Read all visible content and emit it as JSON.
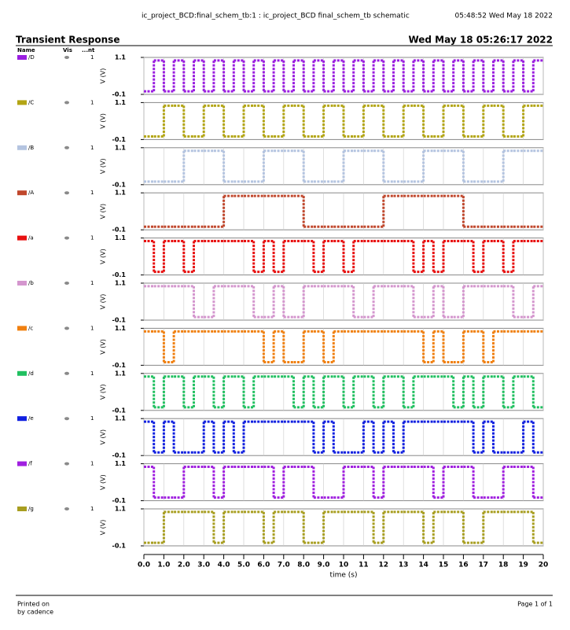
{
  "header": {
    "left": "ic_project_BCD:final_schem_tb:1 : ic_project_BCD final_schem_tb schematic",
    "right": "05:48:52  Wed May 18 2022"
  },
  "chart_data": {
    "type": "line",
    "step": true,
    "title": "Transient Response",
    "date": "Wed May 18 05:26:17 2022",
    "columns": [
      "Name",
      "Vis",
      "...nt"
    ],
    "xlabel": "time (s)",
    "ylabel": "V (V)",
    "xlim": [
      0,
      20
    ],
    "xticks": [
      {
        "value": 0,
        "label": "0.0"
      },
      {
        "value": 1,
        "label": "1.0"
      },
      {
        "value": 2,
        "label": "2.0"
      },
      {
        "value": 3,
        "label": "3.0"
      },
      {
        "value": 4,
        "label": "4.0"
      },
      {
        "value": 5,
        "label": "5.0"
      },
      {
        "value": 6,
        "label": "6.0"
      },
      {
        "value": 7,
        "label": "7.0"
      },
      {
        "value": 8,
        "label": "8.0"
      },
      {
        "value": 9,
        "label": "9.0"
      },
      10,
      11,
      12,
      13,
      14,
      15,
      16,
      17,
      18,
      19,
      20
    ],
    "ylim": [
      -0.1,
      1.1
    ],
    "yticks": [
      -0.1,
      1.1
    ],
    "grid": true,
    "x": [
      0,
      0.5,
      1,
      1.5,
      2,
      2.5,
      3,
      3.5,
      4,
      4.5,
      5,
      5.5,
      6,
      6.5,
      7,
      7.5,
      8,
      8.5,
      9,
      9.5,
      10,
      10.5,
      11,
      11.5,
      12,
      12.5,
      13,
      13.5,
      14,
      14.5,
      15,
      15.5,
      16,
      16.5,
      17,
      17.5,
      18,
      18.5,
      19,
      19.5
    ],
    "series": [
      {
        "name": "/D",
        "color": "#9a1ee0",
        "nt": 1,
        "values": [
          0,
          1,
          0,
          1,
          0,
          1,
          0,
          1,
          0,
          1,
          0,
          1,
          0,
          1,
          0,
          1,
          0,
          1,
          0,
          1,
          0,
          1,
          0,
          1,
          0,
          1,
          0,
          1,
          0,
          1,
          0,
          1,
          0,
          1,
          0,
          1,
          0,
          1,
          0,
          1
        ]
      },
      {
        "name": "/C",
        "color": "#b3a514",
        "nt": 1,
        "values": [
          0,
          0,
          1,
          1,
          0,
          0,
          1,
          1,
          0,
          0,
          1,
          1,
          0,
          0,
          1,
          1,
          0,
          0,
          1,
          1,
          0,
          0,
          1,
          1,
          0,
          0,
          1,
          1,
          0,
          0,
          1,
          1,
          0,
          0,
          1,
          1,
          0,
          0,
          1,
          1
        ]
      },
      {
        "name": "/B",
        "color": "#b4c4e0",
        "nt": 1,
        "values": [
          0,
          0,
          0,
          0,
          1,
          1,
          1,
          1,
          0,
          0,
          0,
          0,
          1,
          1,
          1,
          1,
          0,
          0,
          0,
          0,
          1,
          1,
          1,
          1,
          0,
          0,
          0,
          0,
          1,
          1,
          1,
          1,
          0,
          0,
          0,
          0,
          1,
          1,
          1,
          1
        ]
      },
      {
        "name": "/A",
        "color": "#c0472c",
        "nt": 1,
        "values": [
          0,
          0,
          0,
          0,
          0,
          0,
          0,
          0,
          1,
          1,
          1,
          1,
          1,
          1,
          1,
          1,
          0,
          0,
          0,
          0,
          0,
          0,
          0,
          0,
          1,
          1,
          1,
          1,
          1,
          1,
          1,
          1,
          0,
          0,
          0,
          0,
          0,
          0,
          0,
          0
        ]
      },
      {
        "name": "/a",
        "color": "#e81010",
        "nt": 1,
        "values": [
          1,
          0,
          1,
          1,
          0,
          1,
          1,
          1,
          1,
          1,
          1,
          0,
          1,
          0,
          1,
          1,
          1,
          0,
          1,
          1,
          0,
          1,
          1,
          1,
          1,
          1,
          1,
          0,
          1,
          0,
          1,
          1,
          1,
          0,
          1,
          1,
          0,
          1,
          1,
          1
        ]
      },
      {
        "name": "/b",
        "color": "#d496ce",
        "nt": 1,
        "values": [
          1,
          1,
          1,
          1,
          1,
          0,
          0,
          1,
          1,
          1,
          1,
          0,
          0,
          1,
          0,
          0,
          1,
          1,
          1,
          1,
          1,
          0,
          0,
          1,
          1,
          1,
          1,
          0,
          0,
          1,
          0,
          0,
          1,
          1,
          1,
          1,
          1,
          0,
          0,
          1
        ]
      },
      {
        "name": "/c",
        "color": "#f08010",
        "nt": 1,
        "values": [
          1,
          1,
          0,
          1,
          1,
          1,
          1,
          1,
          1,
          1,
          1,
          1,
          0,
          1,
          0,
          0,
          1,
          1,
          0,
          1,
          1,
          1,
          1,
          1,
          1,
          1,
          1,
          1,
          0,
          1,
          0,
          0,
          1,
          1,
          0,
          1,
          1,
          1,
          1,
          1
        ]
      },
      {
        "name": "/d",
        "color": "#20c060",
        "nt": 1,
        "values": [
          1,
          0,
          1,
          1,
          0,
          1,
          1,
          0,
          1,
          1,
          0,
          1,
          1,
          1,
          1,
          0,
          1,
          0,
          1,
          1,
          0,
          1,
          1,
          0,
          1,
          1,
          0,
          1,
          1,
          1,
          1,
          0,
          1,
          0,
          1,
          1,
          0,
          1,
          1,
          0
        ]
      },
      {
        "name": "/e",
        "color": "#1020e0",
        "nt": 1,
        "values": [
          1,
          0,
          1,
          0,
          0,
          0,
          1,
          0,
          1,
          0,
          1,
          1,
          1,
          1,
          1,
          1,
          1,
          0,
          1,
          0,
          0,
          0,
          1,
          0,
          1,
          0,
          1,
          1,
          1,
          1,
          1,
          1,
          1,
          0,
          1,
          0,
          0,
          0,
          1,
          0
        ]
      },
      {
        "name": "/f",
        "color": "#a020e0",
        "nt": 1,
        "values": [
          1,
          0,
          0,
          0,
          1,
          1,
          1,
          0,
          1,
          1,
          1,
          1,
          1,
          0,
          1,
          1,
          1,
          0,
          0,
          0,
          1,
          1,
          1,
          0,
          1,
          1,
          1,
          1,
          1,
          0,
          1,
          1,
          1,
          0,
          0,
          0,
          1,
          1,
          1,
          0
        ]
      },
      {
        "name": "/g",
        "color": "#a89e20",
        "nt": 1,
        "values": [
          0,
          0,
          1,
          1,
          1,
          1,
          1,
          0,
          1,
          1,
          1,
          1,
          0,
          1,
          1,
          1,
          0,
          0,
          1,
          1,
          1,
          1,
          1,
          0,
          1,
          1,
          1,
          1,
          0,
          1,
          1,
          1,
          0,
          0,
          1,
          1,
          1,
          1,
          1,
          0
        ]
      }
    ]
  },
  "footer": {
    "printed": "Printed on",
    "by": "by cadence",
    "page": "Page 1 of 1"
  }
}
